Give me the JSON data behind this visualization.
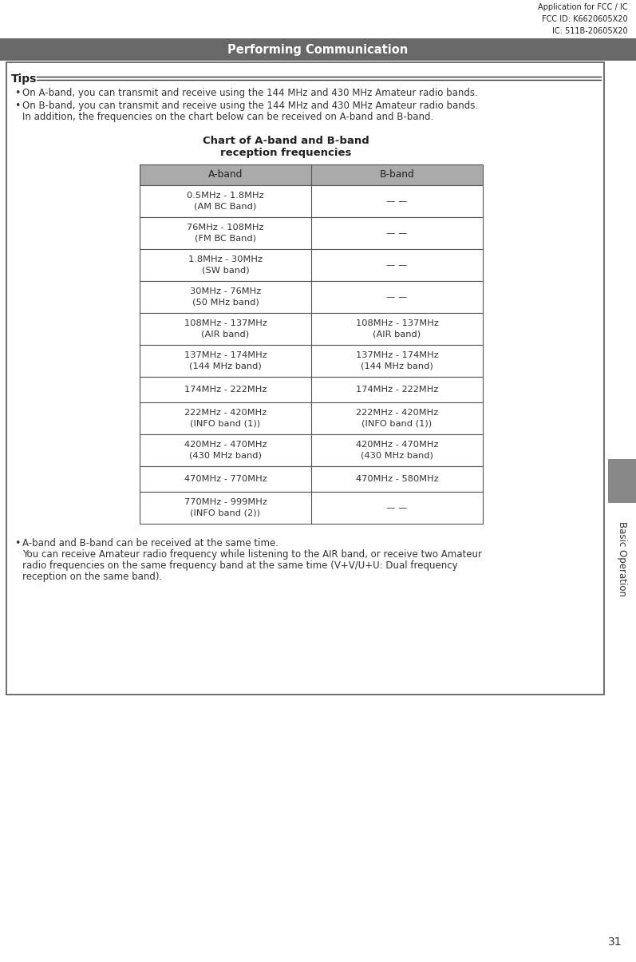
{
  "page_number": "31",
  "section_title": "Basic Operation",
  "header_title": "Performing Communication",
  "header_bg": "#686868",
  "header_text_color": "#ffffff",
  "top_right_lines": [
    "Application for FCC / IC",
    "FCC ID: K6620605X20",
    "IC: 511B-20605X20"
  ],
  "tips_title": "Tips",
  "bullet1": "On A-band, you can transmit and receive using the 144 MHz and 430 MHz Amateur radio bands.",
  "bullet2a": "On B-band, you can transmit and receive using the 144 MHz and 430 MHz Amateur radio bands.",
  "bullet2b": "In addition, the frequencies on the chart below can be received on A-band and B-band.",
  "chart_title_line1": "Chart of A-band and B-band",
  "chart_title_line2": "reception frequencies",
  "table_header_bg": "#aaaaaa",
  "table_header_text": [
    "A-band",
    "B-band"
  ],
  "table_rows": [
    [
      "0.5MHz - 1.8MHz\n(AM BC Band)",
      "— —"
    ],
    [
      "76MHz - 108MHz\n(FM BC Band)",
      "— —"
    ],
    [
      "1.8MHz - 30MHz\n(SW band)",
      "— —"
    ],
    [
      "30MHz - 76MHz\n(50 MHz band)",
      "— —"
    ],
    [
      "108MHz - 137MHz\n(AIR band)",
      "108MHz - 137MHz\n(AIR band)"
    ],
    [
      "137MHz - 174MHz\n(144 MHz band)",
      "137MHz - 174MHz\n(144 MHz band)"
    ],
    [
      "174MHz - 222MHz",
      "174MHz - 222MHz"
    ],
    [
      "222MHz - 420MHz\n(INFO band (1))",
      "222MHz - 420MHz\n(INFO band (1))"
    ],
    [
      "420MHz - 470MHz\n(430 MHz band)",
      "420MHz - 470MHz\n(430 MHz band)"
    ],
    [
      "470MHz - 770MHz",
      "470MHz - 580MHz"
    ],
    [
      "770MHz - 999MHz\n(INFO band (2))",
      "— —"
    ]
  ],
  "bottom_bullet_line1": "A-band and B-band can be received at the same time.",
  "bottom_bullet_line2": "You can receive Amateur radio frequency while listening to the AIR band, or receive two Amateur",
  "bottom_bullet_line3": "radio frequencies on the same frequency band at the same time (V+V/U+U: Dual frequency",
  "bottom_bullet_line4": "reception on the same band).",
  "sidebar_text": "Basic Operation",
  "page_bg": "#ffffff",
  "text_color": "#333333",
  "border_color": "#555555"
}
